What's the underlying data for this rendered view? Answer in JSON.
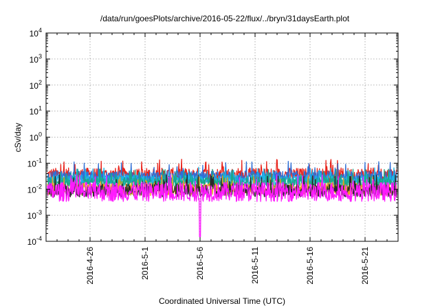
{
  "chart_data": {
    "type": "line",
    "title": "/data/run/goesPlots/archive/2016-05-22/flux/../bryn/31daysEarth.plot",
    "xlabel": "Coordinated Universal Time (UTC)",
    "ylabel": "cSv/day",
    "yscale": "log",
    "ylim": [
      0.0001,
      10000
    ],
    "xlim": [
      "2016-04-22",
      "2016-05-24"
    ],
    "grid": true,
    "y_ticks": [
      {
        "base": "10",
        "exp": "-4",
        "value": 0.0001
      },
      {
        "base": "10",
        "exp": "-3",
        "value": 0.001
      },
      {
        "base": "10",
        "exp": "-2",
        "value": 0.01
      },
      {
        "base": "10",
        "exp": "-1",
        "value": 0.1
      },
      {
        "base": "10",
        "exp": "0",
        "value": 1
      },
      {
        "base": "10",
        "exp": "1",
        "value": 10
      },
      {
        "base": "10",
        "exp": "2",
        "value": 100
      },
      {
        "base": "10",
        "exp": "3",
        "value": 1000
      },
      {
        "base": "10",
        "exp": "4",
        "value": 10000
      }
    ],
    "x_ticks": [
      {
        "label": "2016-4-26",
        "date": "2016-04-26"
      },
      {
        "label": "2016-5-1",
        "date": "2016-05-01"
      },
      {
        "label": "2016-5-6",
        "date": "2016-05-06"
      },
      {
        "label": "2016-5-11",
        "date": "2016-05-11"
      },
      {
        "label": "2016-5-16",
        "date": "2016-05-16"
      },
      {
        "label": "2016-5-21",
        "date": "2016-05-21"
      }
    ],
    "series": [
      {
        "color": "#e8241c",
        "base": 0.035,
        "spread": 0.55,
        "spike": 0.12
      },
      {
        "color": "#2f6fd6",
        "base": 0.03,
        "spread": 0.45,
        "spike": 0.1
      },
      {
        "color": "#1bb3e6",
        "base": 0.022,
        "spread": 0.4,
        "spike": 0.06
      },
      {
        "color": "#1aa88a",
        "base": 0.018,
        "spread": 0.4,
        "spike": 0.05
      },
      {
        "color": "#e8a21c",
        "base": 0.01,
        "spread": 0.5,
        "spike": 0.03
      },
      {
        "color": "#2a2a2a",
        "base": 0.009,
        "spread": 0.5,
        "spike": 0.03
      },
      {
        "color": "#ff1aff",
        "base": 0.008,
        "spread": 0.75,
        "spike": 0.03
      }
    ],
    "dip": {
      "date": "2016-05-06",
      "value": 0.00015
    }
  }
}
